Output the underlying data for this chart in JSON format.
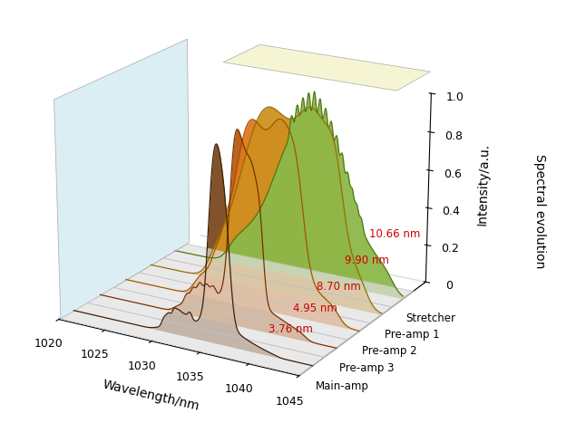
{
  "wavelength_min": 1020,
  "wavelength_max": 1045,
  "wavelength_ticks": [
    1020,
    1025,
    1030,
    1035,
    1040,
    1045
  ],
  "stages": [
    "Main-amp",
    "Pre-amp 3",
    "Pre-amp 2",
    "Pre-amp 1",
    "Stretcher"
  ],
  "bandwidths": [
    "3.76 nm",
    "4.95 nm",
    "8.70 nm",
    "9.90 nm",
    "10.66 nm"
  ],
  "fill_colors": [
    "#7B4A1E",
    "#B85C10",
    "#E07820",
    "#CF9020",
    "#8DB84A"
  ],
  "edge_colors": [
    "#3D2008",
    "#7B3000",
    "#A05500",
    "#907000",
    "#4A7A10"
  ],
  "left_panel_color": "#BEE0EA",
  "top_panel_color": "#EEEDB0",
  "shelf_color": "#E0E0E0",
  "shelf_line_color": "#C0C0C0",
  "annotation_color": "#CC0000",
  "y_label": "Intensity/a.u.",
  "x_label": "Wavelength/nm",
  "z_label": "Spectral evolution",
  "intensity_ticks": [
    0,
    0.2,
    0.4,
    0.6,
    0.8,
    1.0
  ],
  "n_wl": 600,
  "stage_sep": 0.22,
  "elev": 20,
  "azim": -60
}
